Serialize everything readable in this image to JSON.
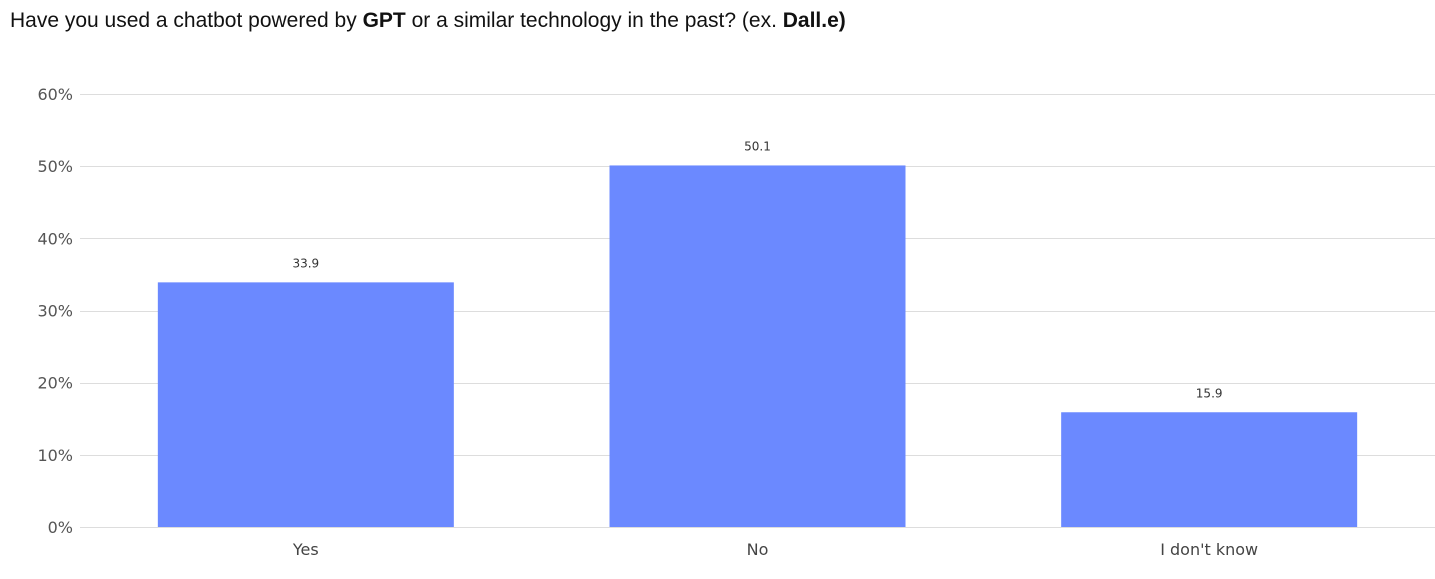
{
  "chart_data": {
    "type": "bar",
    "title_parts": [
      {
        "text": "Have you used a chatbot powered by ",
        "bold": false
      },
      {
        "text": "GPT",
        "bold": true
      },
      {
        "text": " or a similar technology in the past? (ex. ",
        "bold": false
      },
      {
        "text": "Dall.e)",
        "bold": true
      }
    ],
    "categories": [
      "Yes",
      "No",
      "I don't know"
    ],
    "values": [
      33.9,
      50.1,
      15.9
    ],
    "data_labels": [
      "33.9",
      "50.1",
      "15.9"
    ],
    "y_ticks": [
      0,
      10,
      20,
      30,
      40,
      50,
      60
    ],
    "y_tick_labels": [
      "0%",
      "10%",
      "20%",
      "30%",
      "40%",
      "50%",
      "60%"
    ],
    "ylim": [
      0,
      60
    ],
    "xlabel": "",
    "ylabel": "",
    "grid": true,
    "legend": "none",
    "bar_color": "#6b89ff",
    "grid_color": "#dddddd"
  }
}
